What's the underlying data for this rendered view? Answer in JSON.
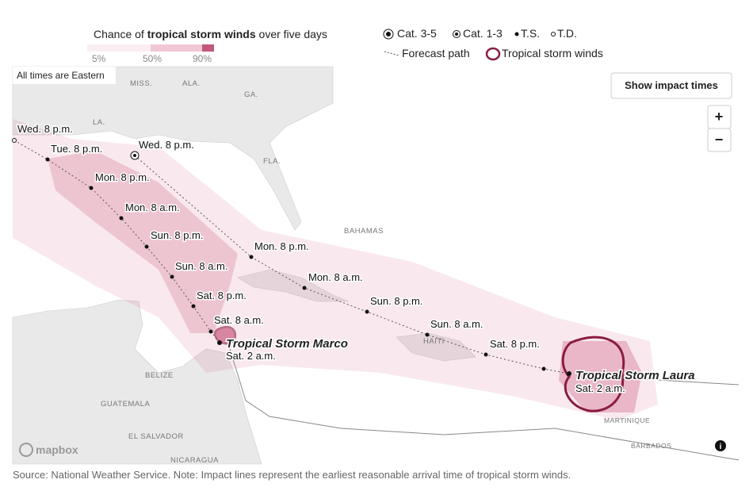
{
  "legend": {
    "title_pre": "Chance of",
    "title_bold": "tropical storm winds",
    "title_post": "over five days",
    "scale": [
      "5%",
      "50%",
      "90%"
    ],
    "symbols": [
      "Cat. 3-5",
      "Cat. 1-3",
      "T.S.",
      "T.D."
    ],
    "path_label": "Forecast path",
    "winds_label": "Tropical storm winds"
  },
  "map": {
    "note": "All times are Eastern",
    "button": "Show impact times",
    "zoom_in": "+",
    "zoom_out": "−",
    "places": [
      "MISS.",
      "ALA.",
      "GA.",
      "LA.",
      "FLA.",
      "BAHAMAS",
      "HAITI",
      "BELIZE",
      "GUATEMALA",
      "EL SALVADOR",
      "NICARAGUA",
      "MARTINIQUE",
      "BARBADOS"
    ],
    "logo": "mapbox",
    "info": "i"
  },
  "storms": [
    {
      "name": "Tropical Storm Marco",
      "time": "Sat. 2 a.m.",
      "points": [
        "Wed. 8 p.m.",
        "Tue. 8 p.m.",
        "Mon. 8 p.m.",
        "Mon. 8 a.m.",
        "Sun. 8 p.m.",
        "Sun. 8 a.m.",
        "Sat. 8 p.m.",
        "Sat. 8 a.m."
      ]
    },
    {
      "name": "Tropical Storm Laura",
      "time": "Sat. 2 a.m.",
      "points": [
        "Wed. 8 p.m.",
        "Mon. 8 p.m.",
        "Mon. 8 a.m.",
        "Sun. 8 p.m.",
        "Sun. 8 a.m.",
        "Sat. 8 p.m."
      ]
    }
  ],
  "source": "Source: National Weather Service. Note: Impact lines represent the earliest reasonable arrival time of tropical storm winds."
}
